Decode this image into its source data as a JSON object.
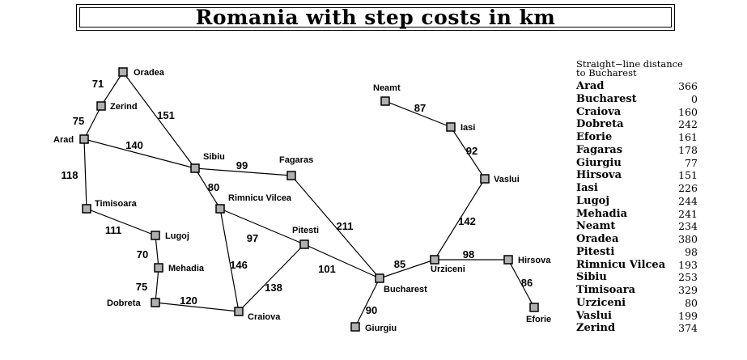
{
  "title": "Romania with step costs in km",
  "cities": [
    {
      "name": "Oradea",
      "pos": "right"
    },
    {
      "name": "Zerind",
      "pos": "right"
    },
    {
      "name": "Arad",
      "pos": "left"
    },
    {
      "name": "Timisoara",
      "pos": "right"
    },
    {
      "name": "Lugoj",
      "pos": "right"
    },
    {
      "name": "Mehadia",
      "pos": "right"
    },
    {
      "name": "Dobreta",
      "pos": "left"
    },
    {
      "name": "Sibiu",
      "pos": "right"
    },
    {
      "name": "Fagaras",
      "pos": "right"
    },
    {
      "name": "Rimnicu Vilcea",
      "pos": "right"
    },
    {
      "name": "Pitesti",
      "pos": "right"
    },
    {
      "name": "Craiova",
      "pos": "right"
    },
    {
      "name": "Bucharest",
      "pos": "right"
    },
    {
      "name": "Giurgiu",
      "pos": "right"
    },
    {
      "name": "Urziceni",
      "pos": "right"
    },
    {
      "name": "Hirsova",
      "pos": "right"
    },
    {
      "name": "Eforie",
      "pos": "below"
    },
    {
      "name": "Vaslui",
      "pos": "right"
    },
    {
      "name": "Iasi",
      "pos": "right"
    },
    {
      "name": "Neamt",
      "pos": "above"
    }
  ],
  "roads": [
    {
      "from": "Oradea",
      "to": "Zerind",
      "cost": 71
    },
    {
      "from": "Zerind",
      "to": "Arad",
      "cost": 75
    },
    {
      "from": "Oradea",
      "to": "Sibiu",
      "cost": 151
    },
    {
      "from": "Arad",
      "to": "Sibiu",
      "cost": 140
    },
    {
      "from": "Arad",
      "to": "Timisoara",
      "cost": 118
    },
    {
      "from": "Timisoara",
      "to": "Lugoj",
      "cost": 111
    },
    {
      "from": "Lugoj",
      "to": "Mehadia",
      "cost": 70
    },
    {
      "from": "Mehadia",
      "to": "Dobreta",
      "cost": 75
    },
    {
      "from": "Dobreta",
      "to": "Craiova",
      "cost": 120
    },
    {
      "from": "Sibiu",
      "to": "Fagaras",
      "cost": 99
    },
    {
      "from": "Sibiu",
      "to": "Rimnicu Vilcea",
      "cost": 80
    },
    {
      "from": "Rimnicu Vilcea",
      "to": "Pitesti",
      "cost": 97
    },
    {
      "from": "Rimnicu Vilcea",
      "to": "Craiova",
      "cost": 146
    },
    {
      "from": "Craiova",
      "to": "Pitesti",
      "cost": 138
    },
    {
      "from": "Pitesti",
      "to": "Bucharest",
      "cost": 101
    },
    {
      "from": "Fagaras",
      "to": "Bucharest",
      "cost": 211
    },
    {
      "from": "Bucharest",
      "to": "Giurgiu",
      "cost": 90
    },
    {
      "from": "Bucharest",
      "to": "Urziceni",
      "cost": 85
    },
    {
      "from": "Urziceni",
      "to": "Hirsova",
      "cost": 98
    },
    {
      "from": "Hirsova",
      "to": "Eforie",
      "cost": 86
    },
    {
      "from": "Urziceni",
      "to": "Vaslui",
      "cost": 142
    },
    {
      "from": "Vaslui",
      "to": "Iasi",
      "cost": 92
    },
    {
      "from": "Iasi",
      "to": "Neamt",
      "cost": 87
    }
  ],
  "sld_table": {
    "heading_line1": "Straight−line distance",
    "heading_line2": "to Bucharest",
    "rows": [
      {
        "city": "Arad",
        "distance": 366
      },
      {
        "city": "Bucharest",
        "distance": 0
      },
      {
        "city": "Craiova",
        "distance": 160
      },
      {
        "city": "Dobreta",
        "distance": 242
      },
      {
        "city": "Eforie",
        "distance": 161
      },
      {
        "city": "Fagaras",
        "distance": 178
      },
      {
        "city": "Giurgiu",
        "distance": 77
      },
      {
        "city": "Hirsova",
        "distance": 151
      },
      {
        "city": "Iasi",
        "distance": 226
      },
      {
        "city": "Lugoj",
        "distance": 244
      },
      {
        "city": "Mehadia",
        "distance": 241
      },
      {
        "city": "Neamt",
        "distance": 234
      },
      {
        "city": "Oradea",
        "distance": 380
      },
      {
        "city": "Pitesti",
        "distance": 98
      },
      {
        "city": "Rimnicu Vilcea",
        "distance": 193
      },
      {
        "city": "Sibiu",
        "distance": 253
      },
      {
        "city": "Timisoara",
        "distance": 329
      },
      {
        "city": "Urziceni",
        "distance": 80
      },
      {
        "city": "Vaslui",
        "distance": 199
      },
      {
        "city": "Zerind",
        "distance": 374
      }
    ]
  }
}
